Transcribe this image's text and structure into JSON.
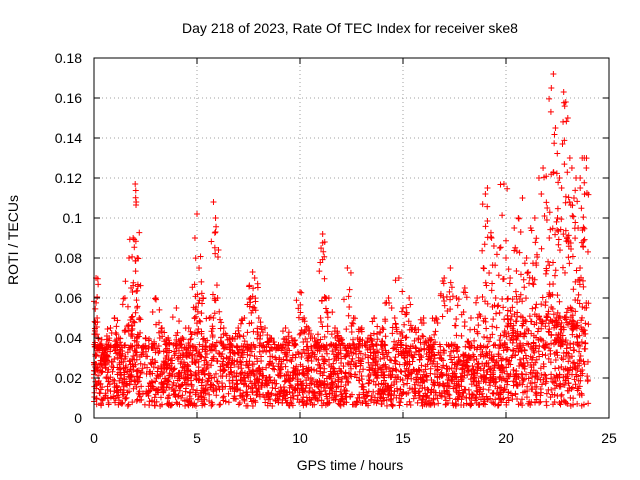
{
  "chart_data": {
    "type": "scatter",
    "title": "Day 218 of 2023, Rate Of TEC Index for receiver ske8",
    "xlabel": "GPS time / hours",
    "ylabel": "ROTI / TECUs",
    "xlim": [
      0,
      25
    ],
    "ylim": [
      0,
      0.18
    ],
    "x_ticks": [
      "0",
      "5",
      "10",
      "15",
      "20",
      "25"
    ],
    "y_ticks": [
      "0",
      "0.02",
      "0.04",
      "0.06",
      "0.08",
      "0.1",
      "0.12",
      "0.14",
      "0.16",
      "0.18"
    ],
    "x_tick_values": [
      0,
      5,
      10,
      15,
      20,
      25
    ],
    "y_tick_values": [
      0,
      0.02,
      0.04,
      0.06,
      0.08,
      0.1,
      0.12,
      0.14,
      0.16,
      0.18
    ],
    "grid": true,
    "marker": "+",
    "marker_color": "#ff0000",
    "series": [
      {
        "name": "ROTI",
        "x": [
          0.0,
          0.1,
          0.15,
          0.2,
          0.3,
          0.5,
          0.8,
          1.0,
          1.2,
          1.5,
          1.7,
          1.8,
          1.9,
          2.0,
          2.05,
          2.1,
          2.2,
          2.5,
          2.8,
          3.0,
          3.3,
          3.6,
          4.0,
          4.3,
          4.6,
          4.9,
          5.0,
          5.1,
          5.3,
          5.6,
          5.8,
          5.9,
          6.0,
          6.3,
          6.6,
          7.0,
          7.3,
          7.6,
          7.7,
          7.8,
          8.0,
          8.3,
          8.6,
          9.0,
          9.3,
          9.6,
          10.0,
          10.2,
          10.4,
          10.7,
          11.0,
          11.1,
          11.2,
          11.4,
          11.7,
          12.0,
          12.3,
          12.6,
          12.8,
          13.0,
          13.3,
          13.6,
          14.0,
          14.3,
          14.6,
          14.8,
          15.0,
          15.3,
          15.6,
          16.0,
          16.3,
          16.6,
          17.0,
          17.3,
          17.6,
          18.0,
          18.3,
          18.6,
          18.9,
          19.0,
          19.1,
          19.3,
          19.5,
          19.7,
          19.9,
          20.0,
          20.2,
          20.4,
          20.6,
          20.8,
          21.0,
          21.2,
          21.4,
          21.6,
          21.8,
          22.0,
          22.1,
          22.2,
          22.3,
          22.4,
          22.5,
          22.6,
          22.7,
          22.8,
          22.9,
          23.0,
          23.1,
          23.2,
          23.3,
          23.4,
          23.5,
          23.6,
          23.7,
          23.8,
          23.9
        ],
        "y": [
          0.02,
          0.07,
          0.05,
          0.04,
          0.035,
          0.03,
          0.045,
          0.05,
          0.04,
          0.06,
          0.08,
          0.065,
          0.09,
          0.117,
          0.108,
          0.08,
          0.05,
          0.04,
          0.035,
          0.06,
          0.045,
          0.04,
          0.055,
          0.04,
          0.045,
          0.09,
          0.102,
          0.075,
          0.06,
          0.05,
          0.108,
          0.1,
          0.06,
          0.045,
          0.04,
          0.045,
          0.05,
          0.06,
          0.073,
          0.07,
          0.05,
          0.045,
          0.04,
          0.035,
          0.045,
          0.04,
          0.063,
          0.05,
          0.045,
          0.04,
          0.05,
          0.092,
          0.088,
          0.06,
          0.045,
          0.04,
          0.075,
          0.05,
          0.04,
          0.045,
          0.04,
          0.05,
          0.045,
          0.06,
          0.05,
          0.07,
          0.055,
          0.06,
          0.045,
          0.05,
          0.04,
          0.05,
          0.07,
          0.075,
          0.06,
          0.065,
          0.05,
          0.06,
          0.075,
          0.112,
          0.115,
          0.09,
          0.06,
          0.085,
          0.117,
          0.08,
          0.07,
          0.095,
          0.1,
          0.11,
          0.08,
          0.095,
          0.1,
          0.12,
          0.125,
          0.105,
          0.09,
          0.165,
          0.172,
          0.145,
          0.1,
          0.12,
          0.115,
          0.163,
          0.158,
          0.15,
          0.13,
          0.125,
          0.11,
          0.12,
          0.095,
          0.12,
          0.13,
          0.13,
          0.125
        ],
        "baseline_band": [
          0.01,
          0.035
        ]
      }
    ]
  }
}
